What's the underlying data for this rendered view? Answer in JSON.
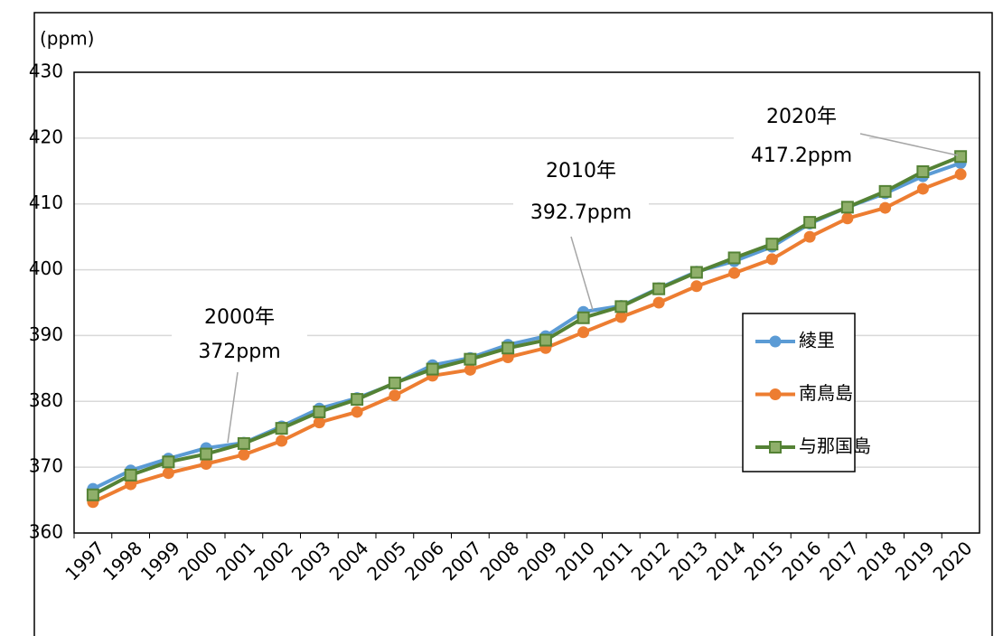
{
  "chart_data": {
    "type": "line",
    "y_label": "(ppm)",
    "categories": [
      "1997",
      "1998",
      "1999",
      "2000",
      "2001",
      "2002",
      "2003",
      "2004",
      "2005",
      "2006",
      "2007",
      "2008",
      "2009",
      "2010",
      "2011",
      "2012",
      "2013",
      "2014",
      "2015",
      "2016",
      "2017",
      "2018",
      "2019",
      "2020"
    ],
    "series": [
      {
        "name": "綾里",
        "color": "#5b9bd5",
        "marker": "circle",
        "values": [
          366.7,
          369.5,
          371.3,
          372.9,
          373.7,
          376.2,
          378.9,
          380.5,
          382.7,
          385.5,
          386.6,
          388.6,
          389.9,
          393.6,
          394.5,
          397.2,
          399.7,
          401.3,
          403.5,
          407.0,
          409.5,
          411.6,
          414.2,
          416.2
        ]
      },
      {
        "name": "南鳥島",
        "color": "#ed7d31",
        "marker": "circle",
        "values": [
          364.7,
          367.4,
          369.1,
          370.5,
          371.9,
          374.0,
          376.8,
          378.4,
          380.9,
          383.9,
          384.8,
          386.7,
          388.1,
          390.5,
          392.8,
          395.0,
          397.5,
          399.5,
          401.6,
          405.0,
          407.8,
          409.4,
          412.3,
          414.5
        ]
      },
      {
        "name": "与那国島",
        "color": "#548235",
        "marker": "square",
        "values": [
          365.8,
          368.8,
          370.8,
          372.0,
          373.6,
          375.9,
          378.4,
          380.3,
          382.8,
          384.9,
          386.4,
          388.1,
          389.3,
          392.7,
          394.4,
          397.1,
          399.6,
          401.8,
          403.9,
          407.2,
          409.5,
          411.9,
          414.9,
          417.2
        ]
      }
    ],
    "ylim": [
      360,
      430
    ],
    "yticks": [
      360,
      370,
      380,
      390,
      400,
      410,
      420,
      430
    ],
    "grid": true,
    "annotations": [
      {
        "lines": [
          "2000年",
          "372ppm"
        ]
      },
      {
        "lines": [
          "2010年",
          "392.7ppm"
        ]
      },
      {
        "lines": [
          "2020年",
          "417.2ppm"
        ]
      }
    ]
  }
}
